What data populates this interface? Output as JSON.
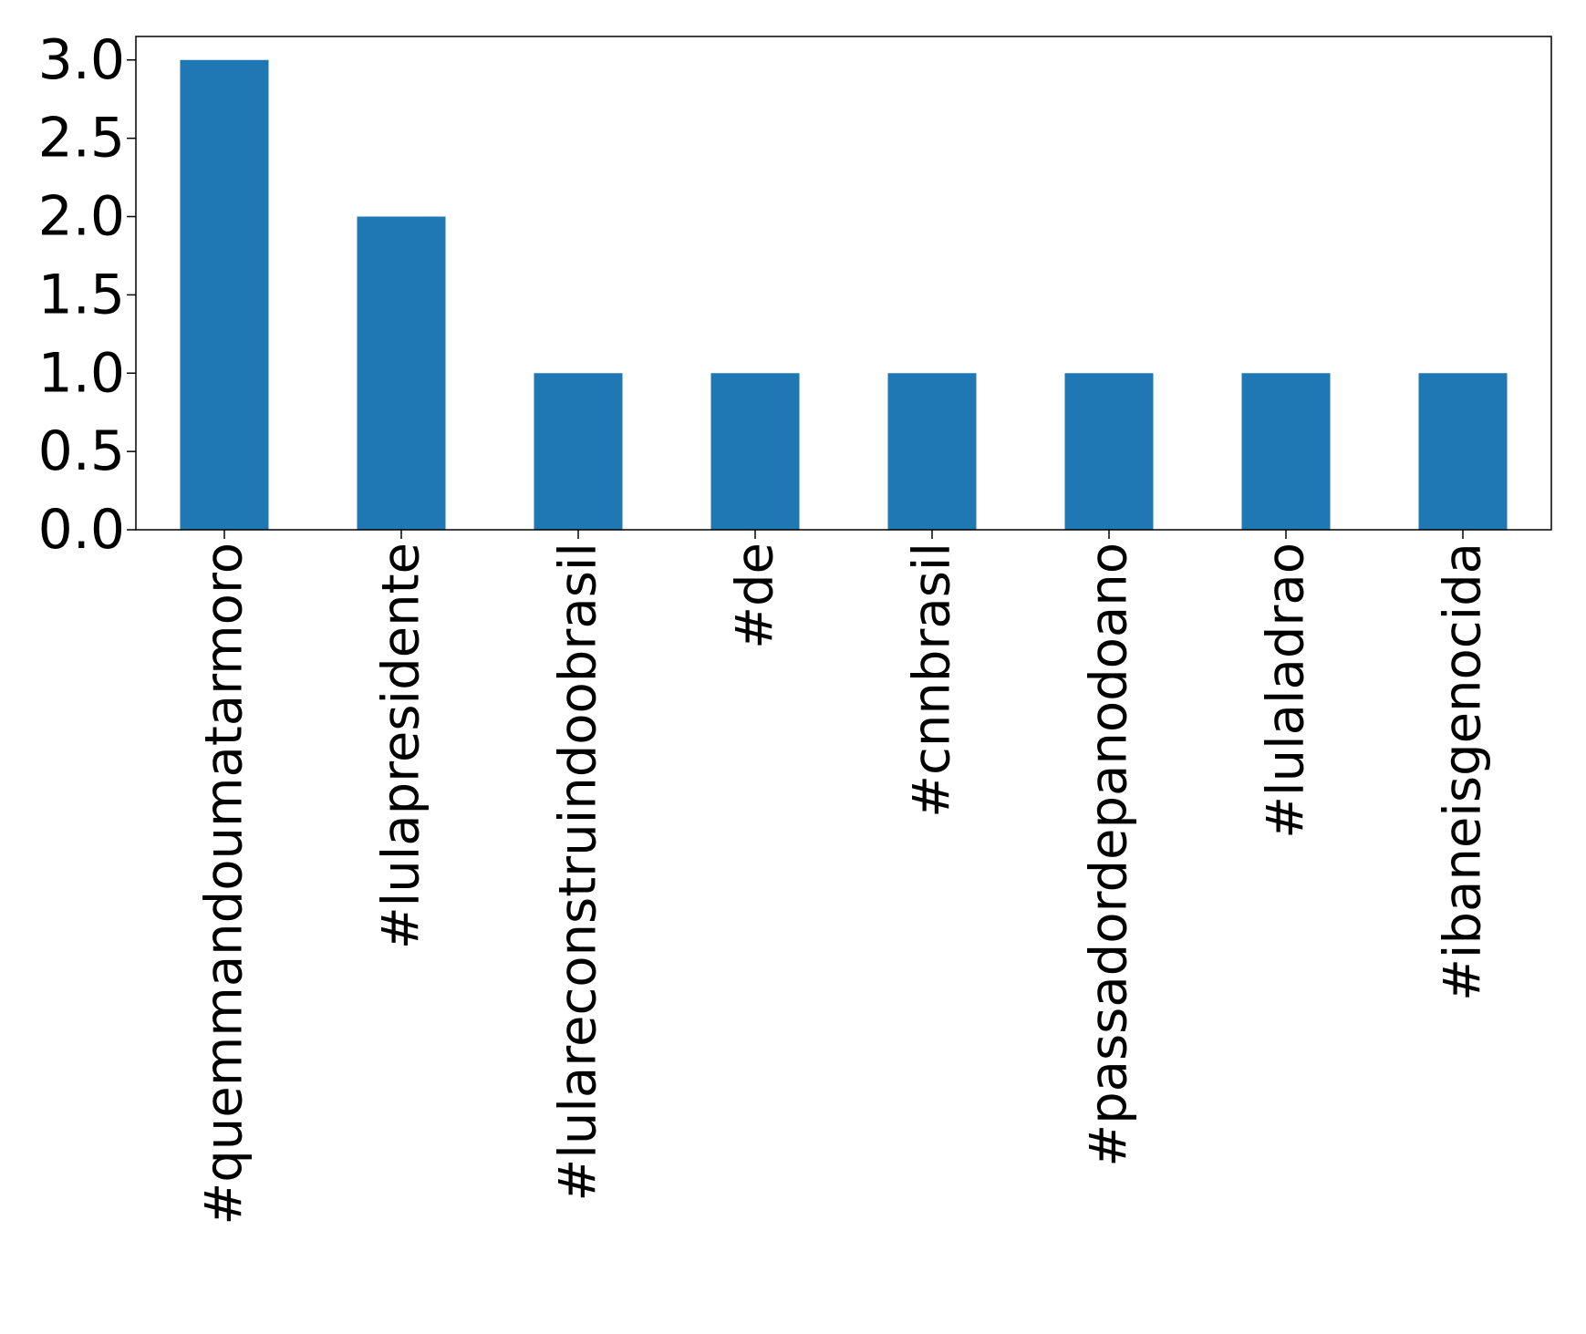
{
  "chart_data": {
    "type": "bar",
    "categories": [
      "#quemmandoumatarmoro",
      "#lulapresidente",
      "#lulareconstruindoobrasil",
      "#de",
      "#cnnbrasil",
      "#passadordepanodoano",
      "#lulaladrao",
      "#ibaneisgenocida"
    ],
    "values": [
      3,
      2,
      1,
      1,
      1,
      1,
      1,
      1
    ],
    "title": "",
    "xlabel": "",
    "ylabel": "",
    "ylim": [
      0,
      3.15
    ],
    "yticks": [
      "0.0",
      "0.5",
      "1.0",
      "1.5",
      "2.0",
      "2.5",
      "3.0"
    ],
    "grid": false,
    "bar_color": "#1f77b4",
    "x_tick_rotation": "vertical"
  }
}
